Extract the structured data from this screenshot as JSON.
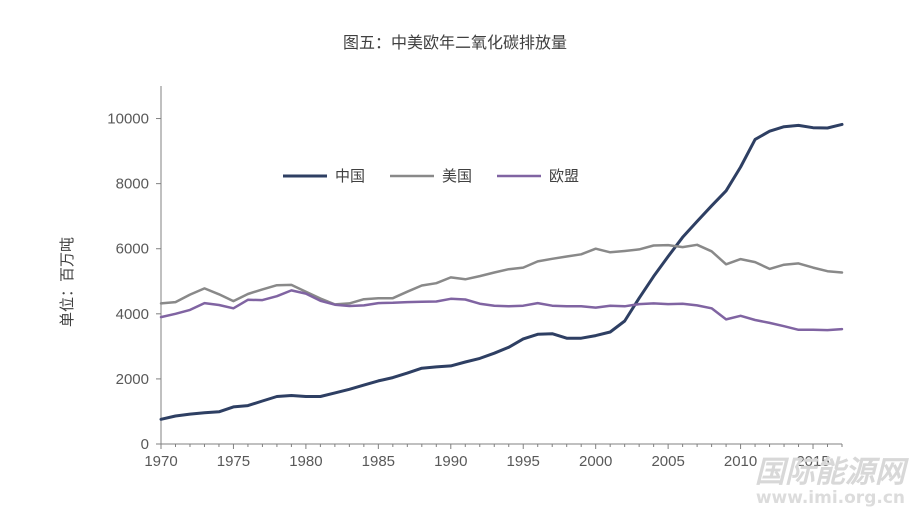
{
  "chart_data": {
    "type": "line",
    "title": "图五：中美欧年二氧化碳排放量",
    "ylabel": "单位：百万吨",
    "xlabel": "",
    "xlim": [
      1970,
      2017
    ],
    "ylim": [
      0,
      11000
    ],
    "yticks": [
      0,
      2000,
      4000,
      6000,
      8000,
      10000
    ],
    "xticks": [
      1970,
      1975,
      1980,
      1985,
      1990,
      1995,
      2000,
      2005,
      2010,
      2015
    ],
    "grid": false,
    "legend_position": "top-center",
    "x": [
      1970,
      1971,
      1972,
      1973,
      1974,
      1975,
      1976,
      1977,
      1978,
      1979,
      1980,
      1981,
      1982,
      1983,
      1984,
      1985,
      1986,
      1987,
      1988,
      1989,
      1990,
      1991,
      1992,
      1993,
      1994,
      1995,
      1996,
      1997,
      1998,
      1999,
      2000,
      2001,
      2002,
      2003,
      2004,
      2005,
      2006,
      2007,
      2008,
      2009,
      2010,
      2011,
      2012,
      2013,
      2014,
      2015,
      2016,
      2017
    ],
    "series": [
      {
        "name": "中国",
        "color": "#2e3f63",
        "values": [
          760,
          860,
          920,
          960,
          990,
          1140,
          1180,
          1320,
          1460,
          1490,
          1460,
          1460,
          1570,
          1680,
          1810,
          1940,
          2040,
          2180,
          2330,
          2370,
          2400,
          2520,
          2630,
          2790,
          2970,
          3230,
          3370,
          3390,
          3250,
          3250,
          3330,
          3440,
          3780,
          4480,
          5150,
          5760,
          6350,
          6840,
          7320,
          7780,
          8510,
          9360,
          9610,
          9750,
          9790,
          9720,
          9710,
          9820
        ]
      },
      {
        "name": "美国",
        "color": "#898989",
        "values": [
          4320,
          4360,
          4590,
          4780,
          4600,
          4390,
          4610,
          4750,
          4880,
          4890,
          4680,
          4470,
          4290,
          4320,
          4450,
          4480,
          4480,
          4680,
          4870,
          4940,
          5120,
          5060,
          5160,
          5270,
          5370,
          5420,
          5610,
          5690,
          5760,
          5830,
          6000,
          5890,
          5930,
          5980,
          6100,
          6110,
          6050,
          6120,
          5920,
          5520,
          5680,
          5590,
          5380,
          5510,
          5550,
          5420,
          5310,
          5270
        ]
      },
      {
        "name": "欧盟",
        "color": "#8064a2",
        "values": [
          3900,
          4000,
          4120,
          4330,
          4270,
          4170,
          4430,
          4420,
          4540,
          4720,
          4620,
          4400,
          4280,
          4240,
          4260,
          4330,
          4340,
          4360,
          4370,
          4380,
          4460,
          4440,
          4310,
          4250,
          4230,
          4250,
          4330,
          4250,
          4230,
          4230,
          4190,
          4250,
          4230,
          4300,
          4320,
          4300,
          4310,
          4260,
          4170,
          3830,
          3940,
          3810,
          3720,
          3620,
          3510,
          3510,
          3500,
          3530
        ]
      }
    ]
  },
  "watermark": {
    "text": "国际能源网",
    "url": "www.imi.org.cn",
    "color": "#d8d8d8"
  }
}
